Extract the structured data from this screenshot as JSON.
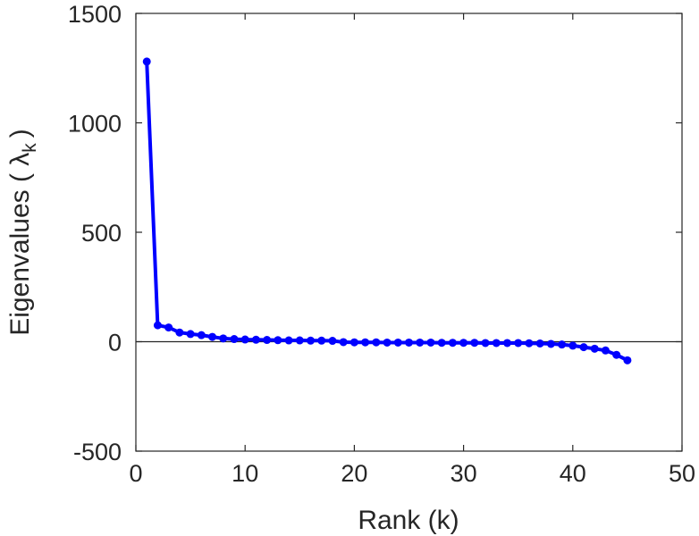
{
  "chart_data": {
    "type": "line",
    "xlabel": "Rank (k)",
    "ylabel": "Eigenvalues ( λ",
    "ylabel_subscript": "k",
    "ylabel_close": ")",
    "xlim": [
      0,
      50
    ],
    "ylim": [
      -500,
      1500
    ],
    "x_ticks": [
      0,
      10,
      20,
      30,
      40,
      50
    ],
    "x_tick_labels": [
      "0",
      "10",
      "20",
      "30",
      "40",
      "50"
    ],
    "y_ticks": [
      -500,
      0,
      500,
      1000,
      1500
    ],
    "y_tick_labels": [
      "-500",
      "0",
      "500",
      "1000",
      "1500"
    ],
    "grid": false,
    "zero_line": true,
    "colors": {
      "series": "#0000ff",
      "axis": "#262626",
      "zero_line": "#262626"
    },
    "series": [
      {
        "x": [
          1,
          2,
          3,
          4,
          5,
          6,
          7,
          8,
          9,
          10,
          11,
          12,
          13,
          14,
          15,
          16,
          17,
          18,
          19,
          20,
          21,
          22,
          23,
          24,
          25,
          26,
          27,
          28,
          29,
          30,
          31,
          32,
          33,
          34,
          35,
          36,
          37,
          38,
          39,
          40,
          41,
          42,
          43,
          44,
          45
        ],
        "y": [
          1280,
          75,
          65,
          42,
          35,
          30,
          22,
          15,
          12,
          10,
          9,
          8,
          7,
          6,
          6,
          5,
          5,
          4,
          -2,
          -3,
          -3,
          -3,
          -4,
          -4,
          -4,
          -4,
          -4,
          -5,
          -5,
          -5,
          -5,
          -6,
          -6,
          -6,
          -6,
          -7,
          -8,
          -10,
          -13,
          -18,
          -25,
          -32,
          -40,
          -60,
          -85
        ]
      }
    ]
  }
}
